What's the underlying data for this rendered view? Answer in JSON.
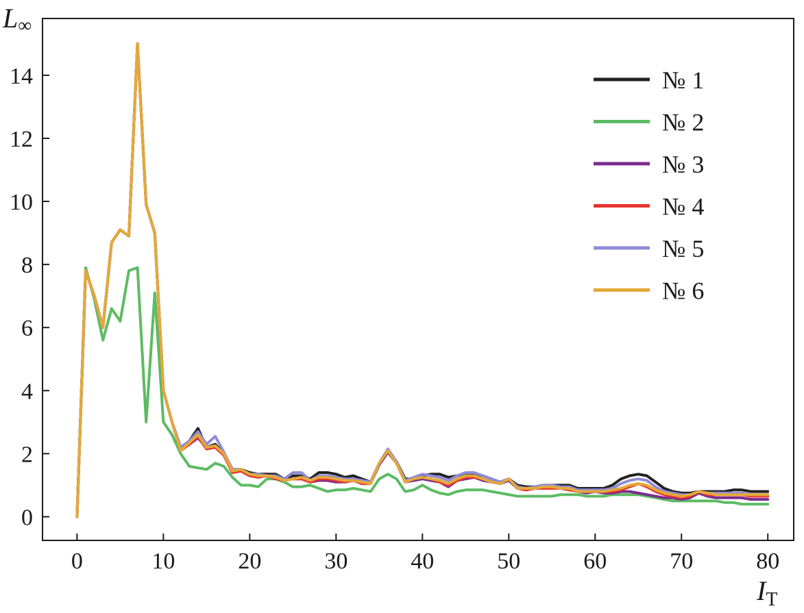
{
  "chart_data": {
    "type": "line",
    "title": "",
    "xlabel": "I",
    "xlabel_sub": "T",
    "ylabel": "L",
    "ylabel_sub": "∞",
    "xlim": [
      -4,
      83
    ],
    "ylim": [
      -0.75,
      15.8
    ],
    "xticks": [
      0,
      10,
      20,
      30,
      40,
      50,
      60,
      70,
      80
    ],
    "yticks": [
      0,
      2,
      4,
      6,
      8,
      10,
      12,
      14
    ],
    "grid": false,
    "legend_position": "top-right",
    "x": [
      0,
      1,
      2,
      3,
      4,
      5,
      6,
      7,
      8,
      9,
      10,
      11,
      12,
      13,
      14,
      15,
      16,
      17,
      18,
      19,
      20,
      21,
      22,
      23,
      24,
      25,
      26,
      27,
      28,
      29,
      30,
      31,
      32,
      33,
      34,
      35,
      36,
      37,
      38,
      39,
      40,
      41,
      42,
      43,
      44,
      45,
      46,
      47,
      48,
      49,
      50,
      51,
      52,
      53,
      54,
      55,
      56,
      57,
      58,
      59,
      60,
      61,
      62,
      63,
      64,
      65,
      66,
      67,
      68,
      69,
      70,
      71,
      72,
      73,
      74,
      75,
      76,
      77,
      78,
      79,
      80
    ],
    "series": [
      {
        "name": "№ 1",
        "color": "#222222",
        "values": [
          0,
          7.8,
          7.0,
          6.0,
          8.7,
          9.1,
          8.9,
          15.0,
          9.9,
          9.0,
          4.0,
          3.0,
          2.2,
          2.4,
          2.8,
          2.2,
          2.3,
          2.0,
          1.5,
          1.5,
          1.4,
          1.35,
          1.35,
          1.35,
          1.2,
          1.3,
          1.3,
          1.2,
          1.4,
          1.4,
          1.35,
          1.25,
          1.3,
          1.2,
          1.1,
          1.7,
          2.1,
          1.75,
          1.2,
          1.2,
          1.3,
          1.35,
          1.35,
          1.25,
          1.3,
          1.35,
          1.35,
          1.3,
          1.2,
          1.1,
          1.2,
          1.0,
          0.95,
          0.95,
          1.0,
          1.0,
          1.0,
          1.0,
          0.9,
          0.9,
          0.9,
          0.9,
          1.0,
          1.2,
          1.3,
          1.35,
          1.3,
          1.1,
          0.9,
          0.8,
          0.75,
          0.75,
          0.8,
          0.8,
          0.8,
          0.8,
          0.85,
          0.85,
          0.8,
          0.8,
          0.8
        ]
      },
      {
        "name": "№ 2",
        "color": "#5dbb63",
        "values": [
          0,
          7.9,
          6.9,
          5.6,
          6.6,
          6.2,
          7.8,
          7.9,
          3.0,
          7.1,
          3.0,
          2.6,
          2.0,
          1.6,
          1.55,
          1.5,
          1.7,
          1.6,
          1.25,
          1.0,
          1.0,
          0.95,
          1.2,
          1.2,
          1.1,
          0.95,
          0.95,
          1.0,
          0.9,
          0.8,
          0.85,
          0.85,
          0.9,
          0.85,
          0.8,
          1.2,
          1.35,
          1.2,
          0.8,
          0.85,
          1.0,
          0.85,
          0.75,
          0.7,
          0.8,
          0.85,
          0.85,
          0.85,
          0.8,
          0.75,
          0.7,
          0.65,
          0.65,
          0.65,
          0.65,
          0.65,
          0.7,
          0.7,
          0.7,
          0.65,
          0.65,
          0.65,
          0.7,
          0.7,
          0.7,
          0.7,
          0.65,
          0.6,
          0.55,
          0.5,
          0.5,
          0.5,
          0.5,
          0.5,
          0.5,
          0.45,
          0.45,
          0.4,
          0.4,
          0.4,
          0.4
        ]
      },
      {
        "name": "№ 3",
        "color": "#7b2d8e",
        "values": [
          0,
          7.8,
          7.0,
          6.0,
          8.7,
          9.1,
          8.9,
          15.0,
          9.9,
          9.0,
          4.0,
          3.0,
          2.1,
          2.3,
          2.5,
          2.2,
          2.2,
          2.0,
          1.4,
          1.45,
          1.3,
          1.3,
          1.3,
          1.25,
          1.15,
          1.2,
          1.2,
          1.1,
          1.15,
          1.15,
          1.1,
          1.1,
          1.15,
          1.05,
          1.05,
          1.65,
          2.05,
          1.7,
          1.1,
          1.15,
          1.2,
          1.15,
          1.1,
          0.95,
          1.15,
          1.2,
          1.25,
          1.15,
          1.1,
          1.05,
          1.15,
          0.9,
          0.85,
          0.9,
          0.9,
          0.9,
          0.9,
          0.9,
          0.8,
          0.75,
          0.8,
          0.75,
          0.75,
          0.8,
          0.8,
          0.75,
          0.7,
          0.65,
          0.6,
          0.6,
          0.55,
          0.6,
          0.75,
          0.65,
          0.6,
          0.6,
          0.6,
          0.6,
          0.55,
          0.55,
          0.55
        ]
      },
      {
        "name": "№ 4",
        "color": "#e8352e",
        "values": [
          0,
          7.8,
          7.0,
          6.0,
          8.7,
          9.1,
          8.9,
          15.0,
          9.9,
          9.0,
          4.0,
          3.0,
          2.1,
          2.3,
          2.55,
          2.15,
          2.2,
          1.95,
          1.4,
          1.45,
          1.3,
          1.25,
          1.3,
          1.2,
          1.15,
          1.2,
          1.2,
          1.1,
          1.2,
          1.2,
          1.15,
          1.1,
          1.15,
          1.05,
          1.05,
          1.7,
          2.1,
          1.7,
          1.1,
          1.2,
          1.25,
          1.2,
          1.1,
          1.0,
          1.15,
          1.25,
          1.25,
          1.2,
          1.1,
          1.05,
          1.2,
          0.9,
          0.85,
          0.9,
          0.9,
          0.9,
          0.9,
          0.85,
          0.8,
          0.8,
          0.8,
          0.8,
          0.8,
          0.85,
          0.95,
          1.05,
          0.95,
          0.8,
          0.7,
          0.65,
          0.6,
          0.65,
          0.8,
          0.7,
          0.7,
          0.7,
          0.7,
          0.7,
          0.65,
          0.65,
          0.65
        ]
      },
      {
        "name": "№ 5",
        "color": "#8e8cd8",
        "values": [
          0,
          7.8,
          7.0,
          6.0,
          8.7,
          9.1,
          8.9,
          15.0,
          9.9,
          9.0,
          4.0,
          3.0,
          2.2,
          2.4,
          2.7,
          2.3,
          2.55,
          2.05,
          1.5,
          1.5,
          1.35,
          1.35,
          1.3,
          1.3,
          1.2,
          1.4,
          1.4,
          1.15,
          1.3,
          1.3,
          1.25,
          1.2,
          1.2,
          1.15,
          1.1,
          1.7,
          2.15,
          1.75,
          1.15,
          1.25,
          1.35,
          1.3,
          1.25,
          1.15,
          1.3,
          1.4,
          1.4,
          1.3,
          1.2,
          1.1,
          1.2,
          0.95,
          0.9,
          0.95,
          1.0,
          1.0,
          0.95,
          0.95,
          0.85,
          0.85,
          0.85,
          0.85,
          0.9,
          1.05,
          1.15,
          1.2,
          1.15,
          0.95,
          0.8,
          0.75,
          0.7,
          0.7,
          0.8,
          0.75,
          0.75,
          0.75,
          0.75,
          0.75,
          0.7,
          0.7,
          0.7
        ]
      },
      {
        "name": "№ 6",
        "color": "#e3a93a",
        "values": [
          0,
          7.8,
          7.0,
          6.0,
          8.7,
          9.1,
          8.9,
          15.0,
          9.9,
          9.0,
          4.0,
          3.0,
          2.1,
          2.35,
          2.6,
          2.2,
          2.25,
          2.0,
          1.45,
          1.5,
          1.35,
          1.3,
          1.3,
          1.25,
          1.15,
          1.2,
          1.25,
          1.15,
          1.25,
          1.25,
          1.2,
          1.15,
          1.15,
          1.1,
          1.05,
          1.7,
          2.1,
          1.7,
          1.1,
          1.2,
          1.25,
          1.2,
          1.15,
          1.05,
          1.2,
          1.3,
          1.3,
          1.2,
          1.1,
          1.05,
          1.2,
          0.9,
          0.9,
          0.9,
          0.95,
          0.95,
          0.9,
          0.9,
          0.8,
          0.8,
          0.8,
          0.8,
          0.85,
          0.9,
          1.0,
          1.05,
          1.0,
          0.85,
          0.75,
          0.7,
          0.65,
          0.7,
          0.8,
          0.75,
          0.7,
          0.7,
          0.7,
          0.7,
          0.7,
          0.7,
          0.7
        ]
      }
    ]
  }
}
